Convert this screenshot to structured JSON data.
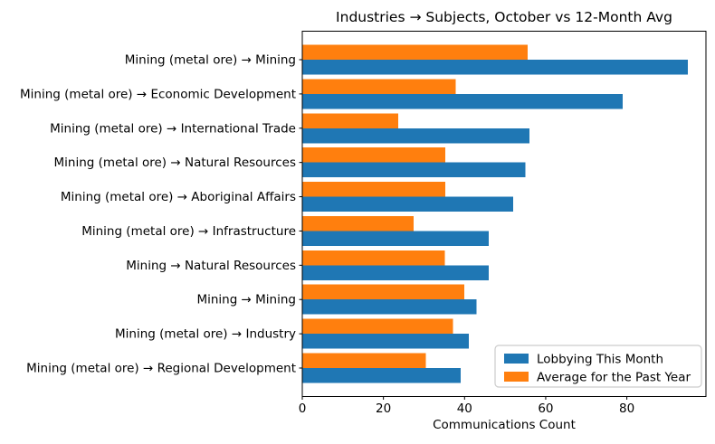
{
  "figure": {
    "background": "#ffffff"
  },
  "chart_data": {
    "type": "bar",
    "orientation": "horizontal",
    "title": "Industries → Subjects, October vs 12-Month Avg",
    "xlabel": "Communications Count",
    "ylabel": "",
    "categories": [
      "Mining (metal ore) → Mining",
      "Mining (metal ore) → Economic Development",
      "Mining (metal ore) → International Trade",
      "Mining (metal ore) → Natural Resources",
      "Mining (metal ore) → Aboriginal Affairs",
      "Mining (metal ore) → Infrastructure",
      "Mining → Natural Resources",
      "Mining → Mining",
      "Mining (metal ore) → Industry",
      "Mining (metal ore) → Regional Development"
    ],
    "series": [
      {
        "name": "Lobbying This Month",
        "color": "#1f77b4",
        "values": [
          95,
          79,
          56,
          55,
          52,
          46,
          46,
          43,
          41,
          39
        ]
      },
      {
        "name": "Average for the Past Year",
        "color": "#ff7f0e",
        "values": [
          55.6,
          37.8,
          23.7,
          35.3,
          35.2,
          27.4,
          35.1,
          39.9,
          37.2,
          30.5
        ]
      }
    ],
    "xlim": [
      0,
      99.5
    ],
    "xticks": [
      0,
      20,
      40,
      60,
      80
    ],
    "grid": false,
    "legend_position": "lower right",
    "axis_color": "#000000",
    "legend_border_color": "#cccccc"
  }
}
